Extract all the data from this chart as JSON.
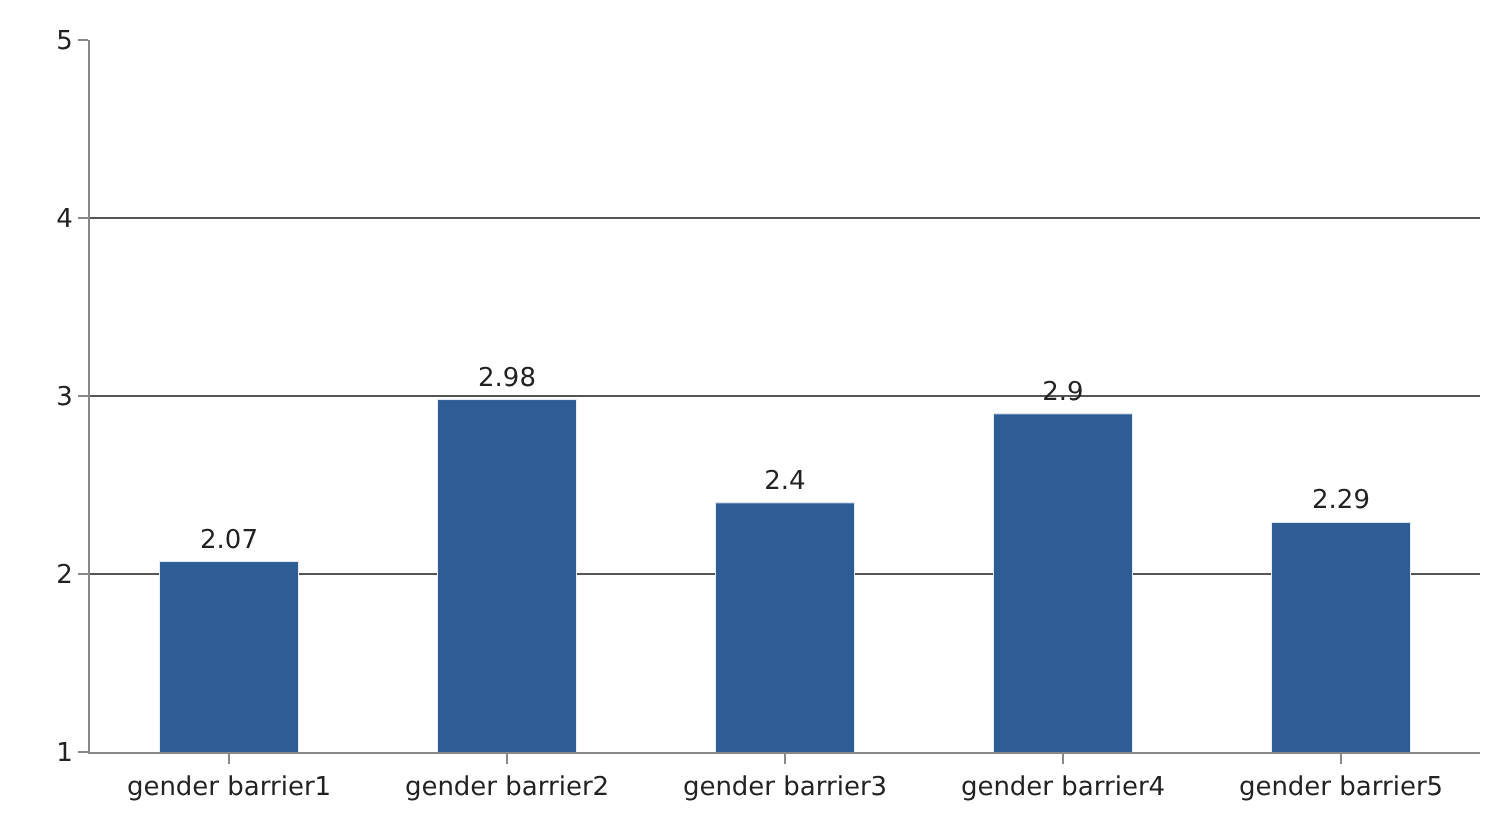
{
  "chart_data": {
    "type": "bar",
    "categories": [
      "gender barrier1",
      "gender barrier2",
      "gender barrier3",
      "gender barrier4",
      "gender barrier5"
    ],
    "values": [
      2.07,
      2.98,
      2.4,
      2.9,
      2.29
    ],
    "color": "#2e5c94",
    "ylim": [
      1,
      5
    ],
    "yticks": [
      1,
      2,
      3,
      4,
      5
    ],
    "grid": "y",
    "data_labels": true,
    "legend": false
  }
}
